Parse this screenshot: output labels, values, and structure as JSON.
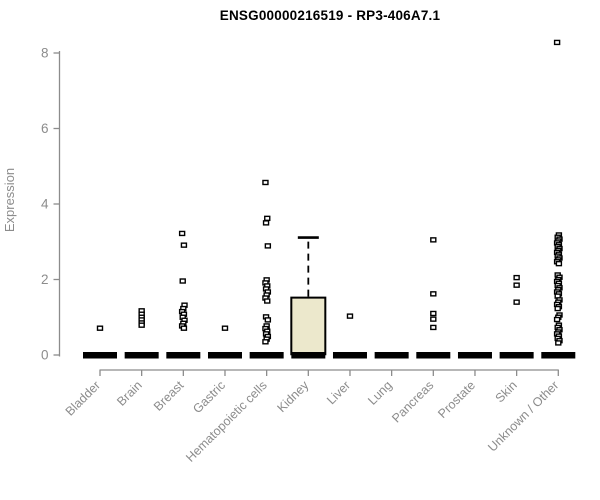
{
  "title": "ENSG00000216519 - RP3-406A7.1",
  "colors": {
    "axis": "#8c8c8c",
    "tick_text": "#8c8c8c",
    "title_text": "#000000",
    "data": "#000000",
    "box_fill": "#ECE8CC",
    "outlier_fill": "#ffffff",
    "background": "#ffffff"
  },
  "chart_data": {
    "type": "boxplot",
    "title": "ENSG00000216519 - RP3-406A7.1",
    "xlabel": "",
    "ylabel": "Expression",
    "ylim": [
      0,
      8.5
    ],
    "yticks": [
      0,
      2,
      4,
      6,
      8
    ],
    "grid": false,
    "legend": "none",
    "categories": [
      "Bladder",
      "Brain",
      "Breast",
      "Gastric",
      "Hematopoietic cells",
      "Kidney",
      "Liver",
      "Lung",
      "Pancreas",
      "Prostate",
      "Skin",
      "Unknown / Other"
    ],
    "boxes": [
      {
        "category": "Bladder",
        "median": 0,
        "q1": 0,
        "q3": 0,
        "whisker_low": 0,
        "whisker_high": 0,
        "outliers": [
          0.71
        ]
      },
      {
        "category": "Brain",
        "median": 0,
        "q1": 0,
        "q3": 0,
        "whisker_low": 0,
        "whisker_high": 0,
        "outliers": [
          1.17,
          1.08,
          1.0,
          0.93,
          0.85,
          0.79
        ]
      },
      {
        "category": "Breast",
        "median": 0,
        "q1": 0,
        "q3": 0,
        "whisker_low": 0,
        "whisker_high": 0,
        "outliers": [
          3.22,
          2.91,
          1.96,
          1.32,
          1.23,
          1.15,
          1.08,
          1.0,
          0.92,
          0.84,
          0.77,
          0.71
        ]
      },
      {
        "category": "Gastric",
        "median": 0,
        "q1": 0,
        "q3": 0,
        "whisker_low": 0,
        "whisker_high": 0,
        "outliers": [
          0.71
        ]
      },
      {
        "category": "Hematopoietic cells",
        "median": 0,
        "q1": 0,
        "q3": 0,
        "whisker_low": 0,
        "whisker_high": 0,
        "outliers": [
          4.57,
          3.62,
          3.5,
          2.89,
          1.99,
          1.91,
          1.83,
          1.75,
          1.67,
          1.59,
          1.51,
          1.43,
          1.01,
          0.93,
          0.77,
          0.7,
          0.63,
          0.56,
          0.49,
          0.42,
          0.35
        ]
      },
      {
        "category": "Kidney",
        "median": 0,
        "q1": 0.02,
        "q3": 1.52,
        "whisker_low": 0,
        "whisker_high": 3.11,
        "outliers": []
      },
      {
        "category": "Liver",
        "median": 0,
        "q1": 0,
        "q3": 0,
        "whisker_low": 0,
        "whisker_high": 0,
        "outliers": [
          1.03
        ]
      },
      {
        "category": "Lung",
        "median": 0,
        "q1": 0,
        "q3": 0,
        "whisker_low": 0,
        "whisker_high": 0,
        "outliers": []
      },
      {
        "category": "Pancreas",
        "median": 0,
        "q1": 0,
        "q3": 0,
        "whisker_low": 0,
        "whisker_high": 0,
        "outliers": [
          3.05,
          1.62,
          1.1,
          0.95,
          0.73
        ]
      },
      {
        "category": "Prostate",
        "median": 0,
        "q1": 0,
        "q3": 0,
        "whisker_low": 0,
        "whisker_high": 0,
        "outliers": []
      },
      {
        "category": "Skin",
        "median": 0,
        "q1": 0,
        "q3": 0,
        "whisker_low": 0,
        "whisker_high": 0,
        "outliers": [
          2.05,
          1.85,
          1.4
        ]
      },
      {
        "category": "Unknown / Other",
        "median": 0,
        "q1": 0,
        "q3": 0,
        "whisker_low": 0,
        "whisker_high": 0,
        "outliers": [
          8.28,
          3.18,
          3.12,
          3.07,
          3.02,
          2.97,
          2.92,
          2.87,
          2.82,
          2.77,
          2.72,
          2.67,
          2.62,
          2.57,
          2.52,
          2.47,
          2.42,
          2.12,
          2.06,
          2.0,
          1.95,
          1.9,
          1.84,
          1.78,
          1.73,
          1.67,
          1.62,
          1.56,
          1.46,
          1.4,
          1.34,
          1.28,
          1.23,
          1.06,
          1.0,
          0.94,
          0.79,
          0.73,
          0.67,
          0.61,
          0.56,
          0.5,
          0.44,
          0.38,
          0.32
        ]
      }
    ]
  }
}
